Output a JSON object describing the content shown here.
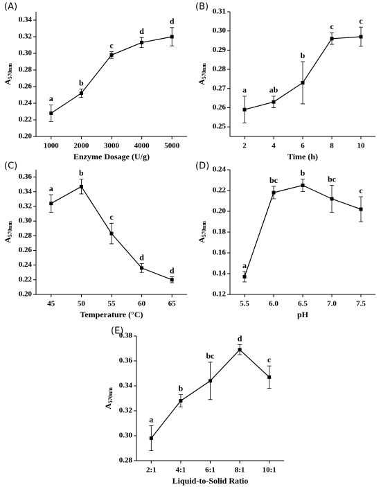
{
  "chart_data": [
    {
      "type": "line",
      "panel": "(A)",
      "xlabel": "Enzyme Dosage (U/g)",
      "ylabel": "A",
      "ylabel_subscript": "570nm",
      "x": [
        1000,
        2000,
        3000,
        4000,
        5000
      ],
      "xlim": [
        500,
        5500
      ],
      "xticks": [
        1000,
        2000,
        3000,
        4000,
        5000
      ],
      "ylim": [
        0.2,
        0.35
      ],
      "yticks": [
        {
          "value": 0.2,
          "label": "0.20"
        },
        {
          "value": 0.22,
          "label": "0.22"
        },
        {
          "value": 0.24,
          "label": "0.24"
        },
        {
          "value": 0.26,
          "label": "0.26"
        },
        {
          "value": 0.28,
          "label": "0.28"
        },
        {
          "value": 0.3,
          "label": "0.30"
        },
        {
          "value": 0.32,
          "label": "0.32"
        },
        {
          "value": 0.34,
          "label": "0.34"
        }
      ],
      "series": [
        {
          "color": "#000000",
          "values": [
            0.228,
            0.252,
            0.298,
            0.313,
            0.32
          ],
          "errors": [
            0.01,
            0.005,
            0.004,
            0.006,
            0.011
          ],
          "letters": [
            "a",
            "b",
            "c",
            "d",
            "d"
          ]
        }
      ]
    },
    {
      "type": "line",
      "panel": "(B)",
      "xlabel": "Time (h)",
      "ylabel": "A",
      "ylabel_subscript": "570nm",
      "x": [
        2,
        4,
        6,
        8,
        10
      ],
      "xlim": [
        1,
        11
      ],
      "xticks": [
        2,
        4,
        6,
        8,
        10
      ],
      "ylim": [
        0.245,
        0.31
      ],
      "yticks": [
        0.25,
        0.26,
        0.27,
        0.28,
        0.29,
        {
          "value": 0.3,
          "label": "0.30"
        },
        0.31
      ],
      "series": [
        {
          "color": "#000000",
          "values": [
            0.259,
            0.263,
            0.273,
            0.296,
            0.297
          ],
          "errors": [
            0.007,
            0.003,
            0.011,
            0.003,
            0.005
          ],
          "letters": [
            "a",
            "ab",
            "b",
            "c",
            "c"
          ]
        }
      ]
    },
    {
      "type": "line",
      "panel": "(C)",
      "xlabel": "Temperature (°C)",
      "ylabel": "A",
      "ylabel_subscript": "570nm",
      "x": [
        45,
        50,
        55,
        60,
        65
      ],
      "xlim": [
        42.5,
        67.5
      ],
      "xticks": [
        45,
        50,
        55,
        60,
        65
      ],
      "ylim": [
        0.2,
        0.37
      ],
      "yticks": [
        {
          "value": 0.2,
          "label": "0.20"
        },
        {
          "value": 0.22,
          "label": "0.22"
        },
        {
          "value": 0.24,
          "label": "0.24"
        },
        {
          "value": 0.26,
          "label": "0.26"
        },
        {
          "value": 0.28,
          "label": "0.28"
        },
        {
          "value": 0.3,
          "label": "0.30"
        },
        {
          "value": 0.32,
          "label": "0.32"
        },
        {
          "value": 0.34,
          "label": "0.34"
        },
        {
          "value": 0.36,
          "label": "0.36"
        }
      ],
      "series": [
        {
          "color": "#000000",
          "values": [
            0.324,
            0.347,
            0.283,
            0.236,
            0.22
          ],
          "errors": [
            0.012,
            0.01,
            0.014,
            0.006,
            0.004
          ],
          "letters": [
            "a",
            "b",
            "c",
            "d",
            "d"
          ]
        }
      ]
    },
    {
      "type": "line",
      "panel": "(D)",
      "xlabel": "pH",
      "ylabel": "A",
      "ylabel_subscript": "570nm",
      "x": [
        5.5,
        6,
        6.5,
        7,
        7.5
      ],
      "xlim": [
        5.25,
        7.75
      ],
      "xticks": [
        5.5,
        {
          "value": 6,
          "label": "6.0"
        },
        6.5,
        {
          "value": 7,
          "label": "7.0"
        },
        7.5
      ],
      "ylim": [
        0.12,
        0.24
      ],
      "yticks": [
        0.12,
        0.14,
        0.16,
        0.18,
        {
          "value": 0.2,
          "label": "0.20"
        },
        0.22,
        0.24
      ],
      "series": [
        {
          "color": "#000000",
          "values": [
            0.137,
            0.218,
            0.225,
            0.212,
            0.202
          ],
          "errors": [
            0.005,
            0.006,
            0.006,
            0.013,
            0.012
          ],
          "letters": [
            "a",
            "bc",
            "b",
            "bc",
            "c"
          ]
        }
      ]
    },
    {
      "type": "line",
      "panel": "(E)",
      "xlabel": "Liquid-to-Solid Ratio",
      "ylabel": "A",
      "ylabel_subscript": "570nm",
      "categories": [
        "2:1",
        "4:1",
        "6:1",
        "8:1",
        "10:1"
      ],
      "ylim": [
        0.28,
        0.38
      ],
      "yticks": [
        0.28,
        {
          "value": 0.3,
          "label": "0.30"
        },
        0.32,
        0.34,
        0.36,
        0.38
      ],
      "series": [
        {
          "color": "#000000",
          "values": [
            0.298,
            0.328,
            0.344,
            0.369,
            0.347
          ],
          "errors": [
            0.01,
            0.005,
            0.015,
            0.004,
            0.009
          ],
          "letters": [
            "a",
            "b",
            "bc",
            "d",
            "c"
          ]
        }
      ]
    }
  ]
}
